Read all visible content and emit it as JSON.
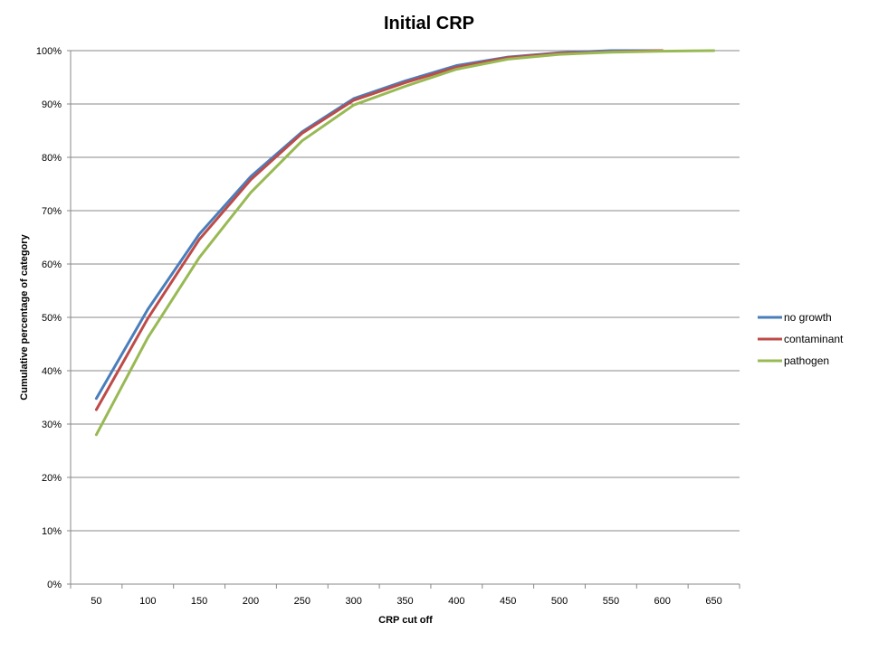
{
  "chart_data": {
    "type": "line",
    "title": "Initial CRP",
    "xlabel": "CRP cut off",
    "ylabel": "Cumulative percentage of category",
    "categories": [
      "50",
      "100",
      "150",
      "200",
      "250",
      "300",
      "350",
      "400",
      "450",
      "500",
      "550",
      "600",
      "650"
    ],
    "ylim": [
      0,
      100
    ],
    "yticks": [
      "0%",
      "10%",
      "20%",
      "30%",
      "40%",
      "50%",
      "60%",
      "70%",
      "80%",
      "90%",
      "100%"
    ],
    "grid": true,
    "legend_position": "right",
    "series": [
      {
        "name": "no growth",
        "color": "#4a7ebb",
        "values": [
          34.8,
          51.5,
          65.6,
          76.4,
          84.8,
          91.0,
          94.3,
          97.2,
          98.8,
          99.6,
          100.0,
          100.0,
          null
        ]
      },
      {
        "name": "contaminant",
        "color": "#be4b48",
        "values": [
          32.7,
          49.8,
          64.6,
          75.8,
          84.5,
          90.7,
          94.0,
          96.9,
          98.7,
          99.5,
          99.8,
          100.0,
          null
        ]
      },
      {
        "name": "pathogen",
        "color": "#98b954",
        "values": [
          28.0,
          46.2,
          61.2,
          73.4,
          83.1,
          89.8,
          93.3,
          96.5,
          98.4,
          99.3,
          99.7,
          99.9,
          100.0
        ]
      }
    ]
  }
}
